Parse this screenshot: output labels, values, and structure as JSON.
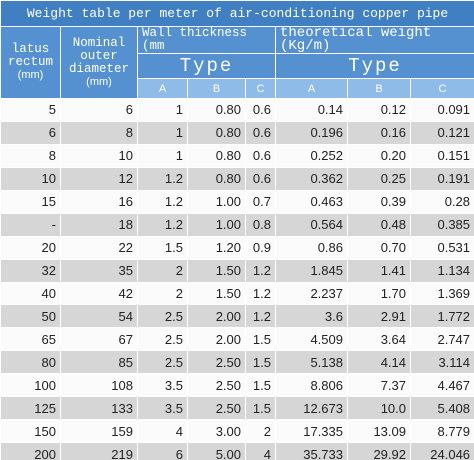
{
  "header": {
    "title": "Weight table per meter of air-conditioning copper pipe",
    "latus_rectum": "latus rectum",
    "latus_unit": "(mm)",
    "outer_diameter": "Nominal outer diameter",
    "outer_unit": "(mm)",
    "wall_thickness": "Wall thickness (mm",
    "theoretical_weight": "theoretical weight (Kg/m)",
    "type_wall": "Type",
    "type_weight": "Type",
    "sub": [
      "A",
      "B",
      "C",
      "A",
      "B",
      "C"
    ]
  },
  "table": {
    "rows": [
      [
        "5",
        "6",
        "1",
        "0.80",
        "0.6",
        "0.14",
        "0.12",
        "0.091"
      ],
      [
        "6",
        "8",
        "1",
        "0.80",
        "0.6",
        "0.196",
        "0.16",
        "0.121"
      ],
      [
        "8",
        "10",
        "1",
        "0.80",
        "0.6",
        "0.252",
        "0.20",
        "0.151"
      ],
      [
        "10",
        "12",
        "1.2",
        "0.80",
        "0.6",
        "0.362",
        "0.25",
        "0.191"
      ],
      [
        "15",
        "16",
        "1.2",
        "1.00",
        "0.7",
        "0.463",
        "0.39",
        "0.28"
      ],
      [
        "-",
        "18",
        "1.2",
        "1.00",
        "0.8",
        "0.564",
        "0.48",
        "0.385"
      ],
      [
        "20",
        "22",
        "1.5",
        "1.20",
        "0.9",
        "0.86",
        "0.70",
        "0.531"
      ],
      [
        "32",
        "35",
        "2",
        "1.50",
        "1.2",
        "1.845",
        "1.41",
        "1.134"
      ],
      [
        "40",
        "42",
        "2",
        "1.50",
        "1.2",
        "2.237",
        "1.70",
        "1.369"
      ],
      [
        "50",
        "54",
        "2.5",
        "2.00",
        "1.2",
        "3.6",
        "2.91",
        "1.772"
      ],
      [
        "65",
        "67",
        "2.5",
        "2.00",
        "1.5",
        "4.509",
        "3.64",
        "2.747"
      ],
      [
        "80",
        "85",
        "2.5",
        "2.50",
        "1.5",
        "5.138",
        "4.14",
        "3.114"
      ],
      [
        "100",
        "108",
        "3.5",
        "2.50",
        "1.5",
        "8.806",
        "7.37",
        "4.467"
      ],
      [
        "125",
        "133",
        "3.5",
        "2.50",
        "1.5",
        "12.673",
        "10.0",
        "5.408"
      ],
      [
        "150",
        "159",
        "4",
        "3.00",
        "2",
        "17.335",
        "13.09",
        "8.779"
      ],
      [
        "200",
        "219",
        "6",
        "5.00",
        "4",
        "35.733",
        "29.92",
        "24.046"
      ]
    ]
  }
}
